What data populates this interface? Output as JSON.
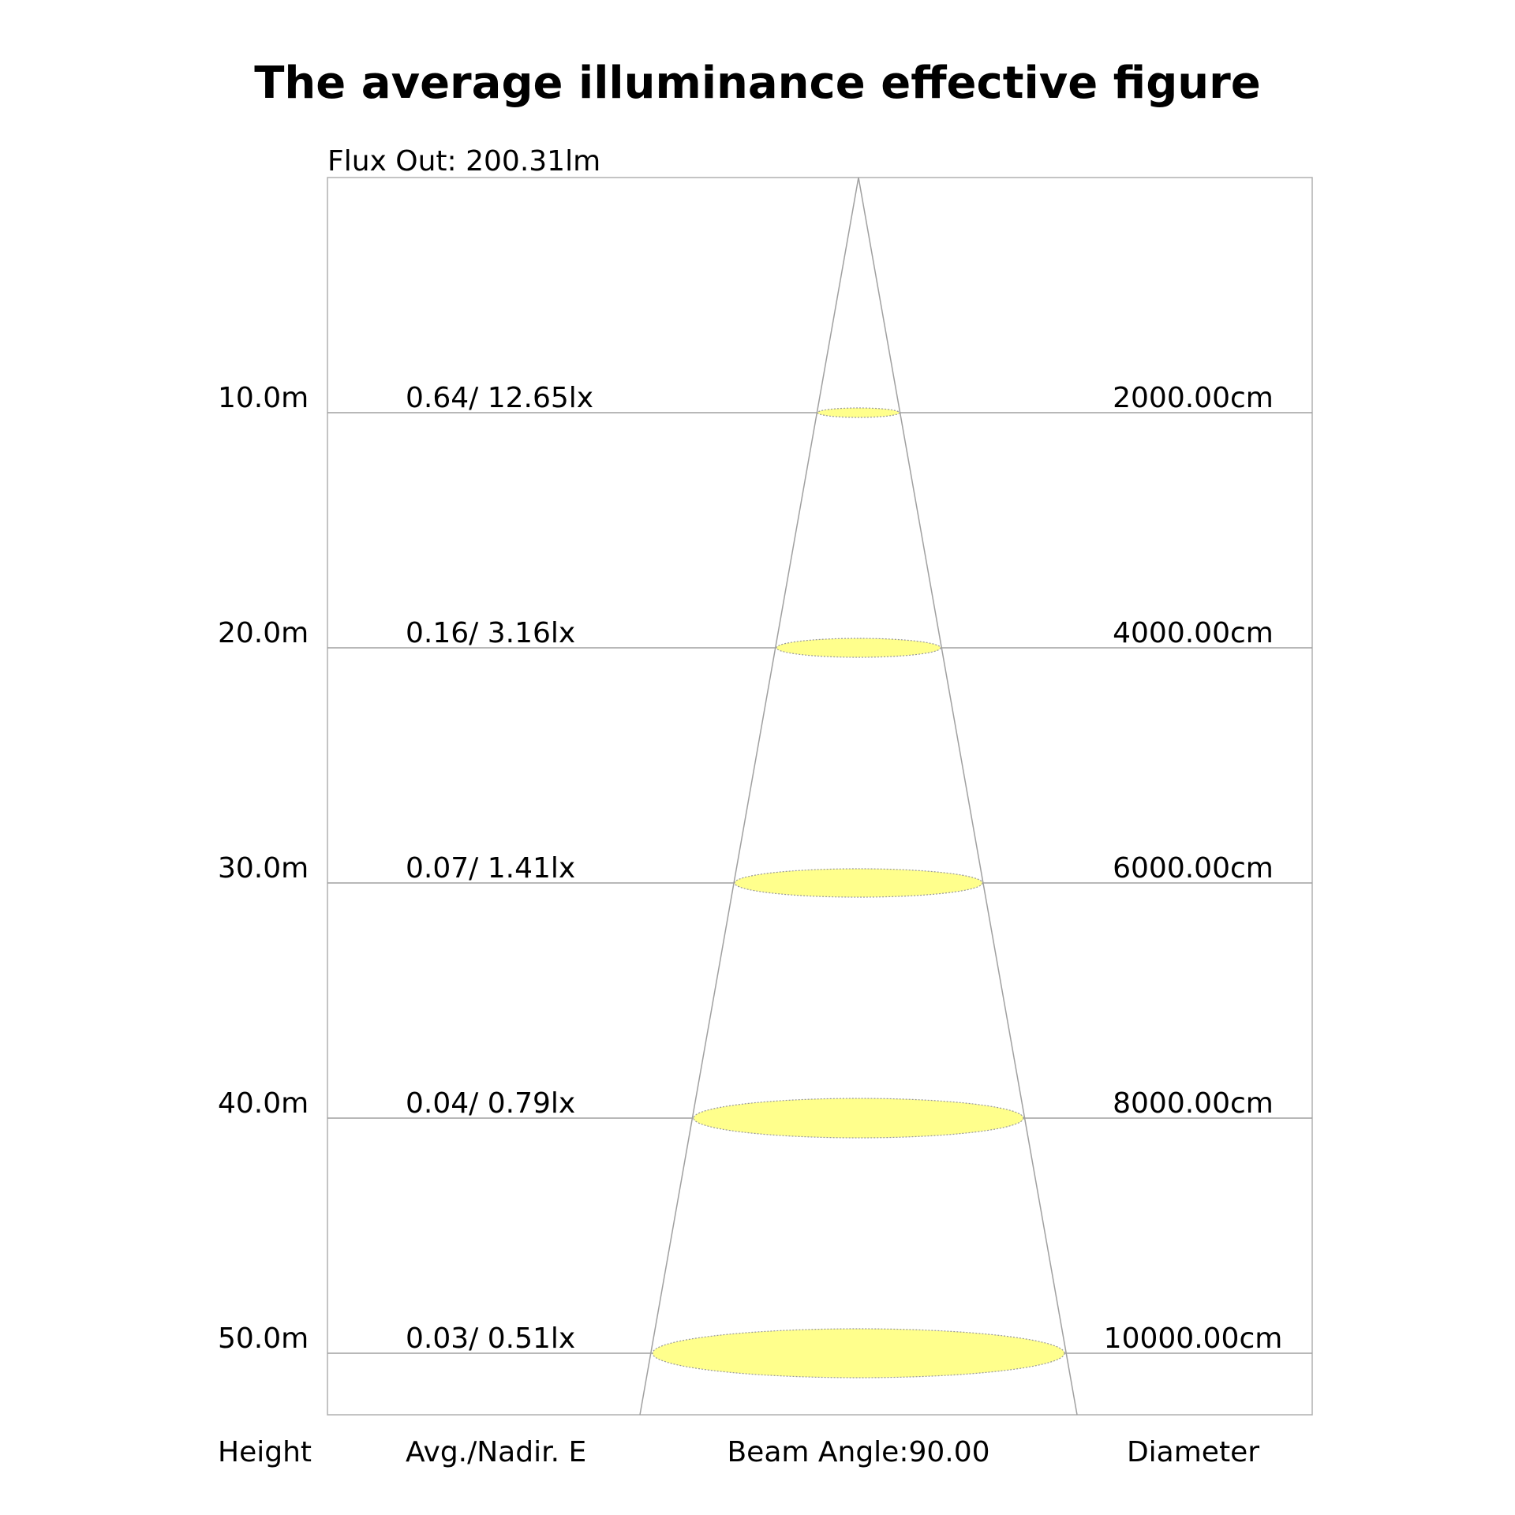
{
  "title": "The average illuminance effective figure",
  "flux_out": "Flux Out: 200.31lm",
  "footer": {
    "height": "Height",
    "avg_nadir": "Avg./Nadir. E",
    "beam_angle": "Beam Angle:90.00",
    "diameter": "Diameter"
  },
  "colors": {
    "spot_fill": "#ffff8c",
    "spot_stroke": "#999999",
    "lines": "#a0a0a0",
    "text": "#000000"
  },
  "rows": [
    {
      "height": "10.0m",
      "illuminance": "0.64/ 12.65lx",
      "diameter": "2000.00cm"
    },
    {
      "height": "20.0m",
      "illuminance": "0.16/ 3.16lx",
      "diameter": "4000.00cm"
    },
    {
      "height": "30.0m",
      "illuminance": "0.07/ 1.41lx",
      "diameter": "6000.00cm"
    },
    {
      "height": "40.0m",
      "illuminance": "0.04/ 0.79lx",
      "diameter": "8000.00cm"
    },
    {
      "height": "50.0m",
      "illuminance": "0.03/ 0.51lx",
      "diameter": "10000.00cm"
    }
  ]
}
